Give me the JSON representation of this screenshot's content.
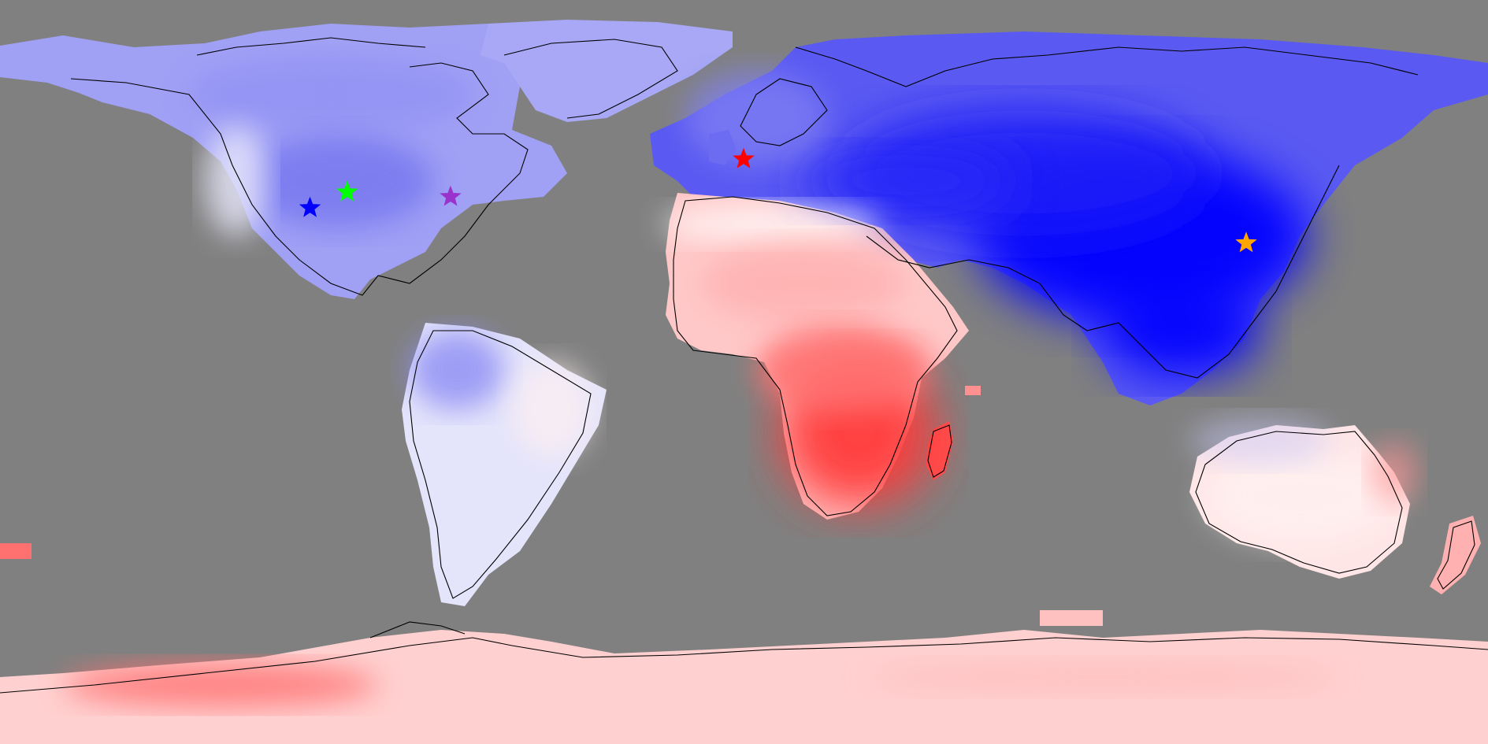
{
  "map": {
    "projection": "equirectangular",
    "ocean_color": "#808080",
    "coastline_color": "#000000",
    "field_palette": {
      "cold_strong": "#0000ff",
      "cold_mid": "#5a5af2",
      "cold_light": "#a0a0f5",
      "neutral": "#ffffff",
      "warm_light": "#ffc8c8",
      "warm_mid": "#ff9090",
      "warm_strong": "#ff3a3a"
    }
  },
  "markers": [
    {
      "id": "blue-star",
      "color": "#0000ff",
      "lon": -105.0,
      "lat": 39.7
    },
    {
      "id": "green-star",
      "color": "#00ff00",
      "lon": -96.0,
      "lat": 43.5
    },
    {
      "id": "purple-star",
      "color": "#9933cc",
      "lon": -71.0,
      "lat": 42.4
    },
    {
      "id": "red-star",
      "color": "#ff0000",
      "lon": -0.1,
      "lat": 51.5
    },
    {
      "id": "orange-star",
      "color": "#ffa500",
      "lon": 121.5,
      "lat": 31.2
    }
  ]
}
